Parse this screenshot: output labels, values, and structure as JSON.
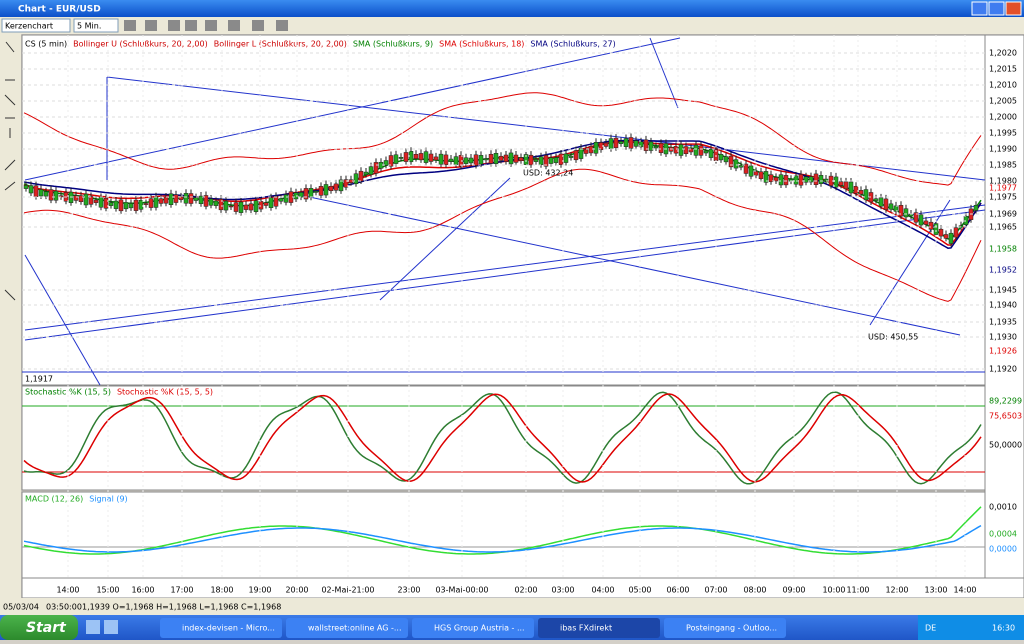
{
  "window": {
    "title": "Chart - EUR/USD"
  },
  "toolbar": {
    "chart_type": "Kerzenchart",
    "interval": "5 Min."
  },
  "main_pane": {
    "legend": [
      {
        "text": "CS (5 min)",
        "color": "#000000"
      },
      {
        "text": "Bollinger U (Schlußkurs, 20, 2,00)",
        "color": "#cc0000"
      },
      {
        "text": "Bollinger L (Schlußkurs, 20, 2,00)",
        "color": "#cc0000"
      },
      {
        "text": "SMA (Schlußkurs, 9)",
        "color": "#008000"
      },
      {
        "text": "SMA (Schlußkurs, 18)",
        "color": "#dd0000"
      },
      {
        "text": "SMA (Schlußkurs, 27)",
        "color": "#000080"
      }
    ],
    "price_labels": [
      "1,2020",
      "1,2015",
      "1,2010",
      "1,2005",
      "1,2000",
      "1,1995",
      "1,1990",
      "1,1985",
      "1,1980",
      "1,1975",
      "1,1969",
      "1,1965",
      "1,1945",
      "1,1940",
      "1,1935",
      "1,1930",
      "1,1920"
    ],
    "highlight_labels": [
      {
        "text": "1,1977",
        "color": "#dd0000"
      },
      {
        "text": "1,1958",
        "color": "#008000"
      },
      {
        "text": "1,1952",
        "color": "#000080"
      },
      {
        "text": "1,1926",
        "color": "#dd0000"
      }
    ],
    "annotations": [
      "USD: 432,24",
      "USD: 450,55"
    ],
    "cursor_price": "1,1917"
  },
  "stochastic_pane": {
    "legend": [
      {
        "text": "Stochastic %K (15, 5)",
        "color": "#008000"
      },
      {
        "text": "Stochastic %K (15, 5, 5)",
        "color": "#dd0000"
      }
    ],
    "labels": [
      {
        "text": "89,2299",
        "color": "#008000"
      },
      {
        "text": "75,6503",
        "color": "#dd0000"
      },
      {
        "text": "50,0000",
        "color": "#000000"
      }
    ]
  },
  "macd_pane": {
    "legend": [
      {
        "text": "MACD (12, 26)",
        "color": "#22aa22"
      },
      {
        "text": "Signal (9)",
        "color": "#1e90ff"
      }
    ],
    "labels": [
      {
        "text": "0,0010",
        "color": "#000000"
      },
      {
        "text": "0,0004",
        "color": "#22aa22"
      },
      {
        "text": "0,0000",
        "color": "#1e90ff"
      }
    ]
  },
  "time_axis": [
    "14:00",
    "15:00",
    "16:00",
    "17:00",
    "18:00",
    "19:00",
    "20:00",
    "02-Mai-21:00",
    "23:00",
    "03-Mai-00:00",
    "02:00",
    "03:00",
    "04:00",
    "05:00",
    "06:00",
    "07:00",
    "08:00",
    "09:00",
    "10:00",
    "11:00",
    "12:00",
    "13:00",
    "14:00"
  ],
  "status_bar": {
    "date": "05/03/04",
    "time": "03:50:00",
    "ohlc": "1,1939 O=1,1968 H=1,1968 L=1,1968 C=1,1968"
  },
  "taskbar": {
    "start": "Start",
    "items": [
      "index-devisen - Micro...",
      "wallstreet:online AG -...",
      "HGS Group Austria - ...",
      "ibas FXdirekt",
      "Posteingang - Outloo..."
    ],
    "language": "DE",
    "clock": "16:30"
  }
}
